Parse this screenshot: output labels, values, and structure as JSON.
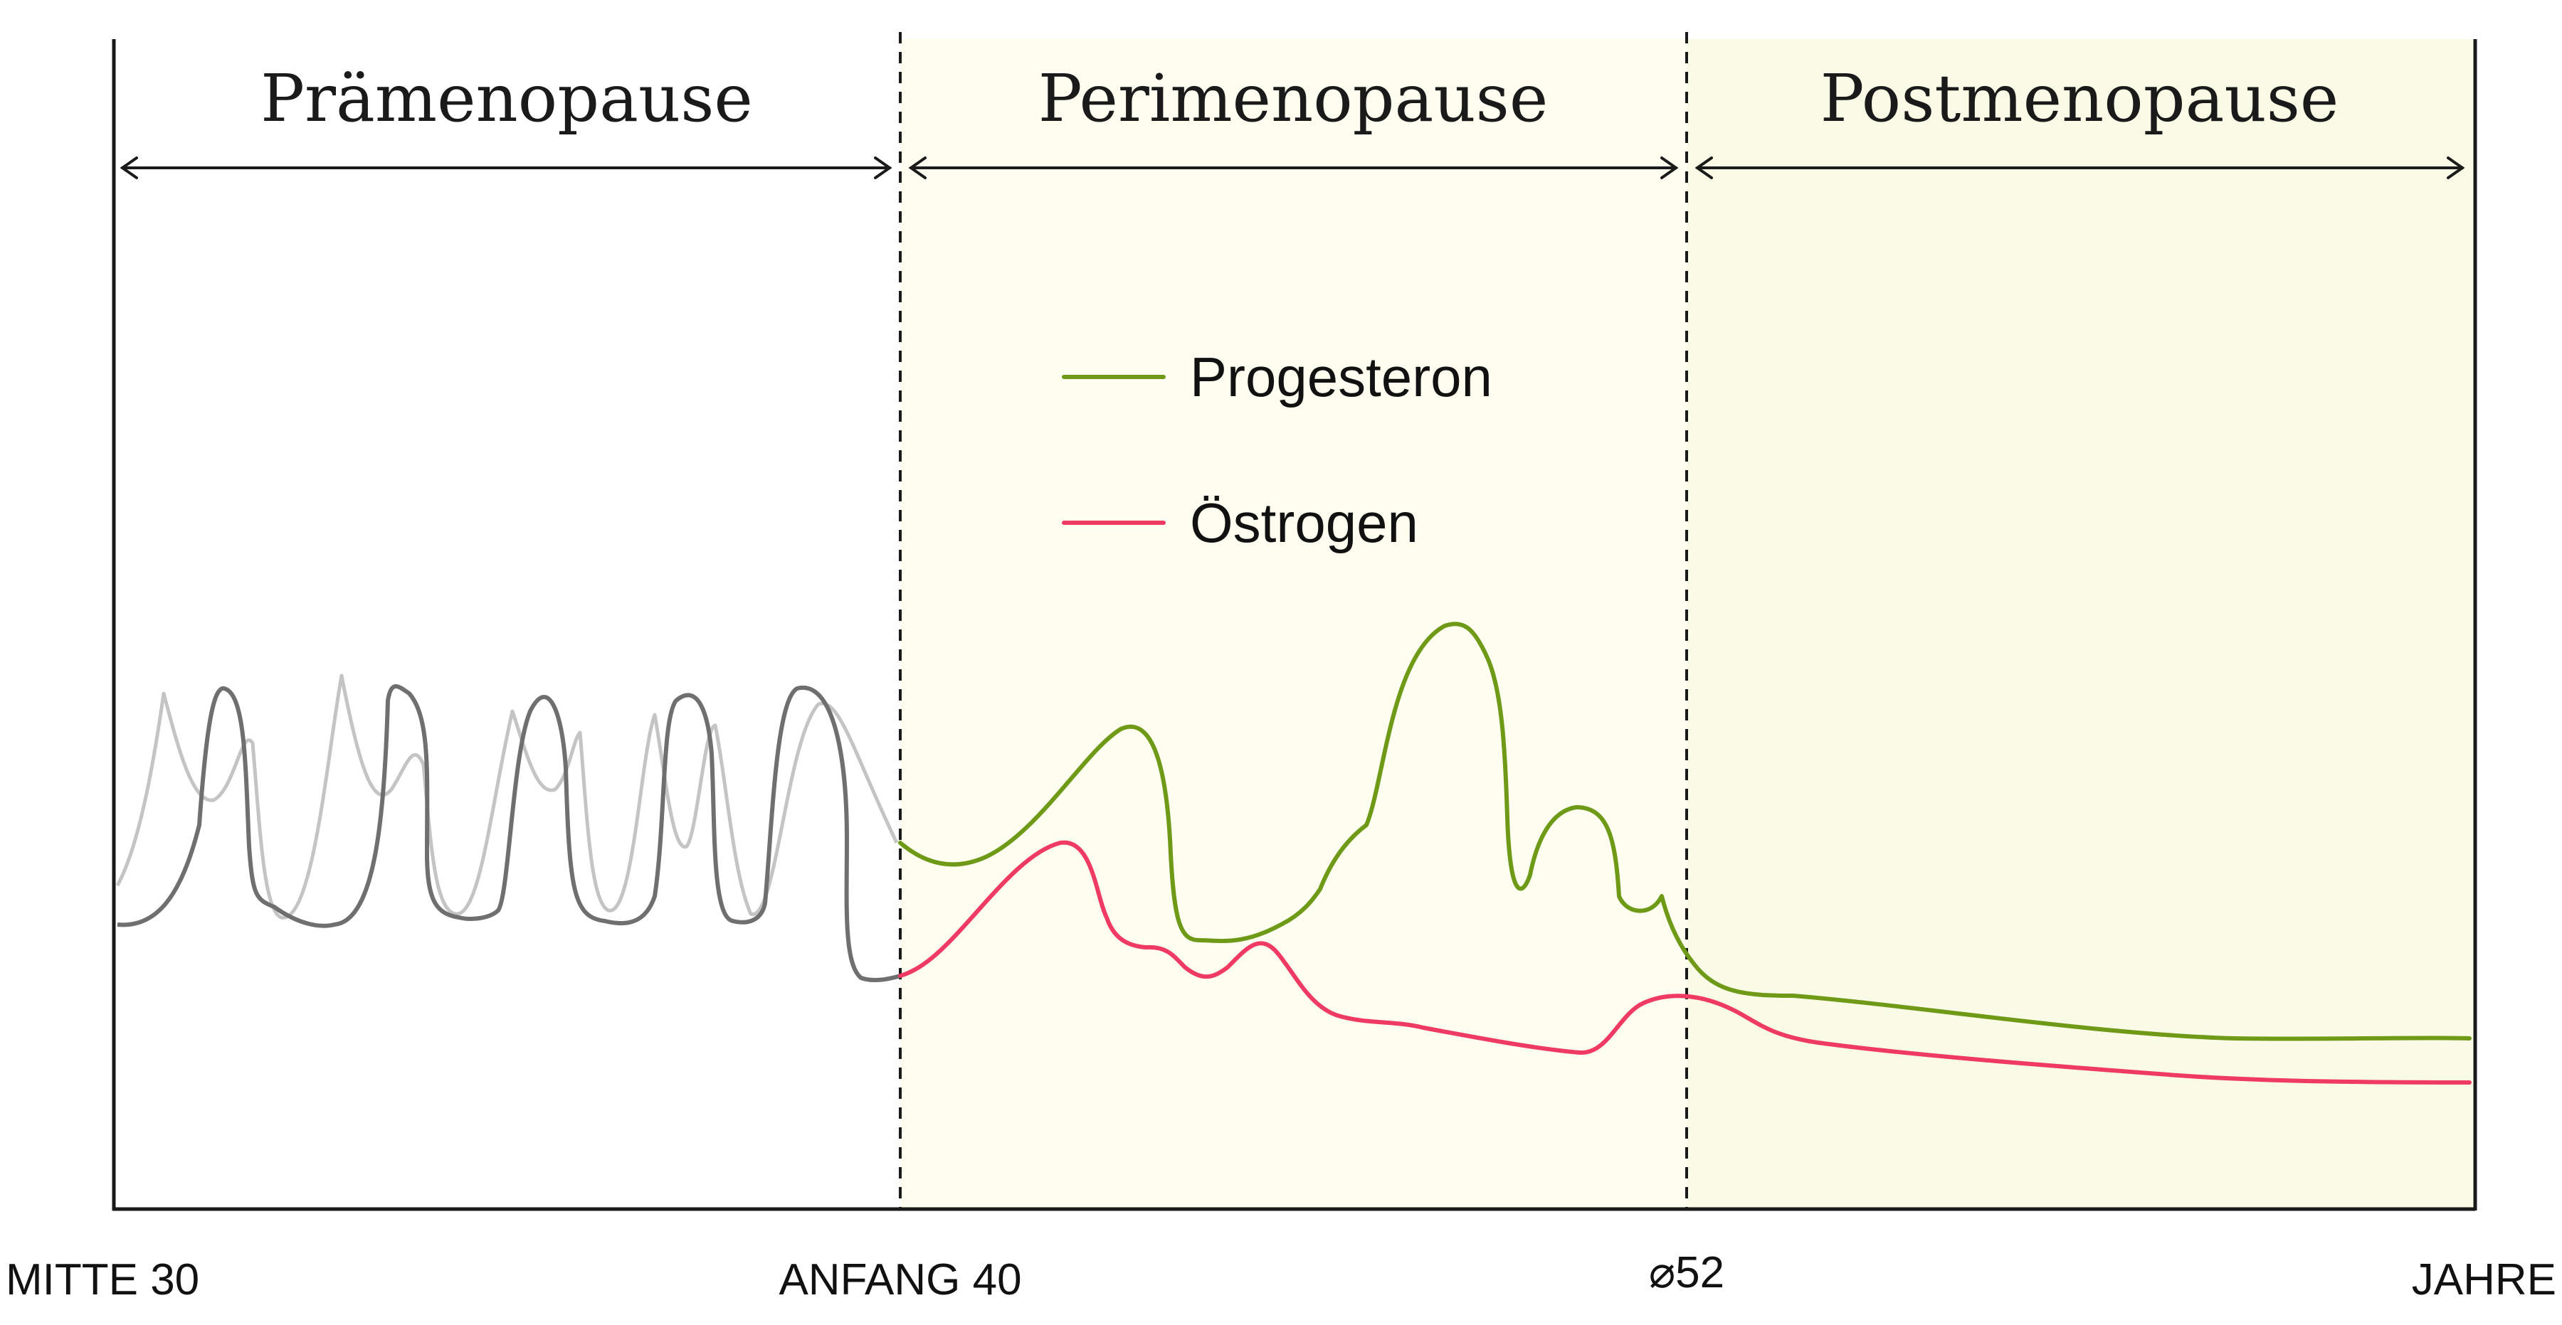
{
  "chart_data": {
    "type": "line",
    "title": "",
    "xlabel": "JAHRE",
    "ylabel": "",
    "x_ticks": [
      "MITTE 30",
      "ANFANG 40",
      "⌀52",
      "JAHRE"
    ],
    "phases": [
      {
        "name": "Prämenopause",
        "shaded": false
      },
      {
        "name": "Perimenopause",
        "shaded": true
      },
      {
        "name": "Postmenopause",
        "shaded": true
      }
    ],
    "legend_placement": "center",
    "grid": false,
    "series": [
      {
        "name": "Progesteron",
        "color": "#6f9a17"
      },
      {
        "name": "Östrogen",
        "color": "#ef3b63"
      }
    ],
    "colors": {
      "shade": "#fdfdf0",
      "axis": "#1a1a1a",
      "cycle_dark": "#6f6f6f",
      "cycle_light": "#c4c4c4"
    }
  }
}
